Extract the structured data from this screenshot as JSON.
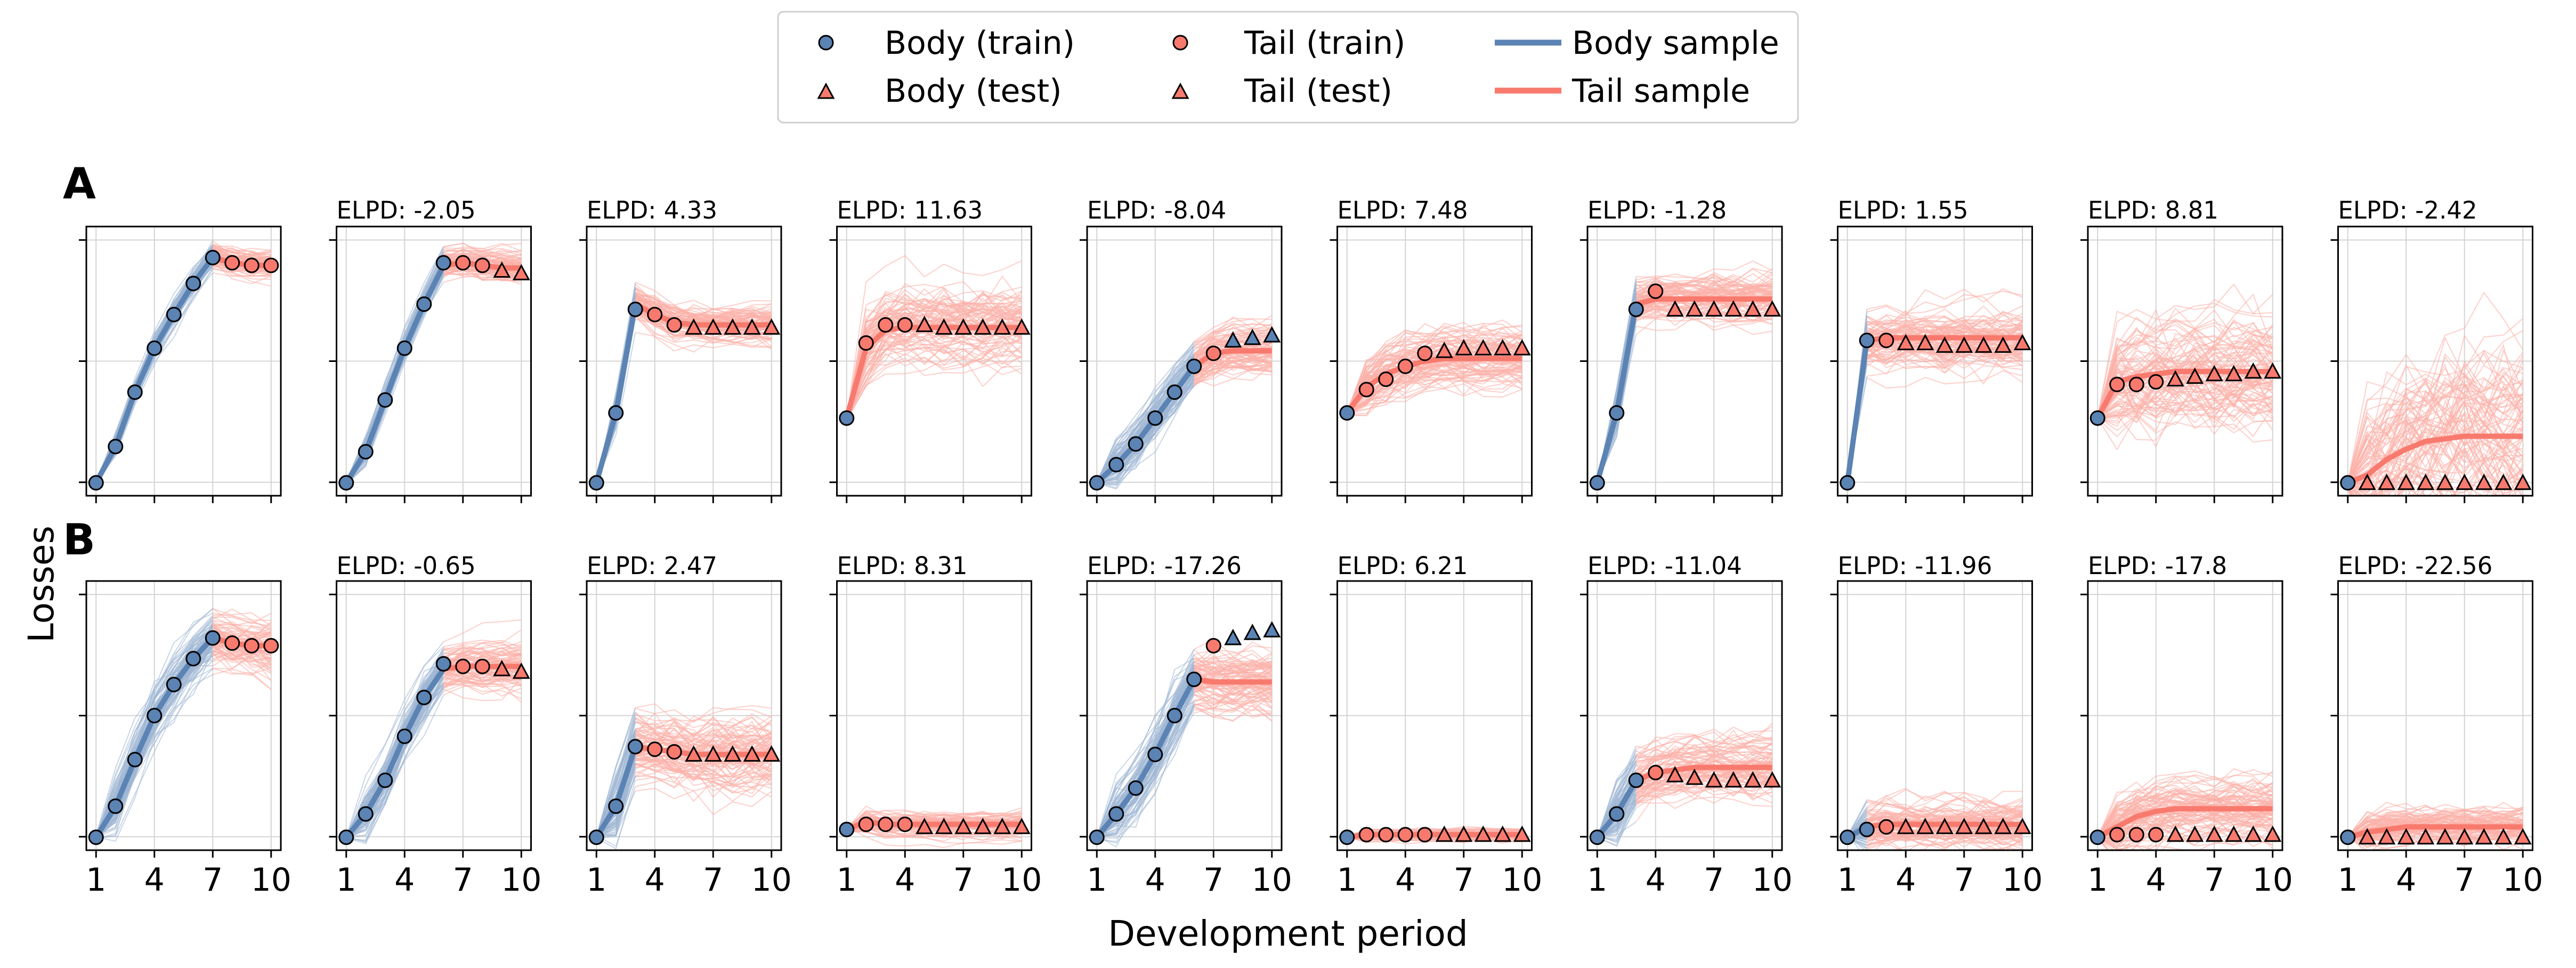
{
  "legend": {
    "entries": [
      {
        "label": "Body (train)",
        "marker": "circle",
        "color": "#5b83b3"
      },
      {
        "label": "Body (test)",
        "marker": "triangle",
        "color": "#f87a6e"
      },
      {
        "label": "Tail (train)",
        "marker": "circle",
        "color": "#f87a6e"
      },
      {
        "label": "Tail (test)",
        "marker": "triangle",
        "color": "#f87a6e"
      },
      {
        "label": "Body sample",
        "marker": "line",
        "color": "#5b83b3"
      },
      {
        "label": "Tail sample",
        "marker": "line",
        "color": "#f87a6e"
      }
    ]
  },
  "colors": {
    "body": "#5b83b3",
    "tail": "#f87a6e",
    "body_light": "#9fb6d3",
    "tail_light": "#fbb0a8"
  },
  "labels": {
    "ylabel": "Losses",
    "xlabel": "Development period"
  },
  "chart_data": {
    "type": "line",
    "xlim": [
      1,
      10
    ],
    "xticks": [
      1,
      4,
      7,
      10
    ],
    "rows": [
      {
        "label": "A",
        "panels": [
          {
            "elpd": "",
            "yticks": [
              0.0,
              0.5,
              1.0
            ],
            "body_n": 7,
            "test_n": 0,
            "tail_x": [
              8,
              9,
              10
            ],
            "obs": [
              0.03,
              0.17,
              0.38,
              0.55,
              0.68,
              0.8,
              0.9,
              0.88,
              0.87,
              0.87
            ],
            "mean": [
              0.03,
              0.17,
              0.38,
              0.55,
              0.68,
              0.8,
              0.9,
              0.88,
              0.87,
              0.87
            ],
            "spread": 0.05
          },
          {
            "elpd": "ELPD: -2.05",
            "yticks": [
              0.0,
              0.4,
              0.8
            ],
            "body_n": 6,
            "test_n": 2,
            "tail_x": [
              7,
              8,
              9,
              10
            ],
            "obs": [
              0.03,
              0.15,
              0.35,
              0.55,
              0.72,
              0.88,
              0.88,
              0.87,
              0.85,
              0.84
            ],
            "mean": [
              0.03,
              0.15,
              0.35,
              0.55,
              0.72,
              0.87,
              0.88,
              0.87,
              0.86,
              0.86
            ],
            "spread": 0.05
          },
          {
            "elpd": "ELPD: 4.33",
            "yticks": [
              0.2,
              0.5,
              0.8
            ],
            "body_n": 3,
            "test_n": 5,
            "tail_x": [
              4,
              5,
              6,
              7,
              8,
              9,
              10
            ],
            "obs": [
              0.03,
              0.3,
              0.7,
              0.68,
              0.64,
              0.63,
              0.63,
              0.63,
              0.63,
              0.63
            ],
            "mean": [
              0.03,
              0.3,
              0.72,
              0.68,
              0.65,
              0.64,
              0.64,
              0.64,
              0.64,
              0.64
            ],
            "spread": 0.06
          },
          {
            "elpd": "ELPD: 11.63",
            "yticks": [
              0.2,
              0.5,
              0.8
            ],
            "body_n": 1,
            "test_n": 6,
            "tail_x": [
              2,
              3,
              4,
              5,
              6,
              7,
              8,
              9,
              10
            ],
            "obs": [
              0.28,
              0.57,
              0.64,
              0.64,
              0.64,
              0.63,
              0.63,
              0.63,
              0.63,
              0.63
            ],
            "mean": [
              0.28,
              0.55,
              0.62,
              0.63,
              0.63,
              0.63,
              0.63,
              0.63,
              0.63,
              0.63
            ],
            "spread": 0.12
          },
          {
            "elpd": "ELPD: -8.04",
            "yticks": [
              0.1,
              0.4,
              0.7
            ],
            "body_n": 6,
            "test_n": 3,
            "tail_x": [
              7,
              8,
              9,
              10
            ],
            "obs": [
              0.03,
              0.1,
              0.18,
              0.28,
              0.38,
              0.48,
              0.53,
              0.58,
              0.59,
              0.6
            ],
            "mean": [
              0.03,
              0.1,
              0.18,
              0.28,
              0.38,
              0.48,
              0.53,
              0.54,
              0.54,
              0.54
            ],
            "spread": 0.08
          },
          {
            "elpd": "ELPD: 7.48",
            "yticks": [
              0.2,
              0.5,
              0.8
            ],
            "body_n": 1,
            "test_n": 5,
            "tail_x": [
              2,
              3,
              4,
              5,
              6,
              7,
              8,
              9,
              10
            ],
            "obs": [
              0.3,
              0.39,
              0.43,
              0.48,
              0.53,
              0.54,
              0.55,
              0.55,
              0.55,
              0.55
            ],
            "mean": [
              0.3,
              0.4,
              0.45,
              0.48,
              0.5,
              0.51,
              0.51,
              0.51,
              0.51,
              0.51
            ],
            "spread": 0.1
          },
          {
            "elpd": "ELPD: -1.28",
            "yticks": [
              0.1,
              0.4,
              0.7
            ],
            "body_n": 3,
            "test_n": 6,
            "tail_x": [
              4,
              5,
              6,
              7,
              8,
              9,
              10
            ],
            "obs": [
              0.03,
              0.3,
              0.7,
              0.77,
              0.7,
              0.7,
              0.7,
              0.7,
              0.7,
              0.7
            ],
            "mean": [
              0.03,
              0.3,
              0.72,
              0.74,
              0.74,
              0.74,
              0.74,
              0.74,
              0.74,
              0.74
            ],
            "spread": 0.08
          },
          {
            "elpd": "ELPD: 1.55",
            "yticks": [
              0.1,
              0.4,
              0.7
            ],
            "body_n": 2,
            "test_n": 7,
            "tail_x": [
              3,
              4,
              5,
              6,
              7,
              8,
              9,
              10
            ],
            "obs": [
              0.03,
              0.58,
              0.58,
              0.57,
              0.57,
              0.56,
              0.56,
              0.56,
              0.56,
              0.57
            ],
            "mean": [
              0.03,
              0.58,
              0.59,
              0.59,
              0.59,
              0.59,
              0.59,
              0.59,
              0.59,
              0.59
            ],
            "spread": 0.1
          },
          {
            "elpd": "ELPD: 8.81",
            "yticks": [
              0.2,
              0.5,
              0.8
            ],
            "body_n": 1,
            "test_n": 6,
            "tail_x": [
              2,
              3,
              4,
              5,
              6,
              7,
              8,
              9,
              10
            ],
            "obs": [
              0.28,
              0.41,
              0.41,
              0.42,
              0.43,
              0.44,
              0.45,
              0.45,
              0.46,
              0.46
            ],
            "mean": [
              0.28,
              0.42,
              0.44,
              0.45,
              0.46,
              0.46,
              0.46,
              0.46,
              0.46,
              0.46
            ],
            "spread": 0.18
          },
          {
            "elpd": "ELPD: -2.42",
            "yticks": [
              0.1,
              0.4,
              0.7
            ],
            "body_n": 1,
            "test_n": 9,
            "tail_x": [
              2,
              3,
              4,
              5,
              6,
              7,
              8,
              9,
              10
            ],
            "obs": [
              0.03,
              0.03,
              0.03,
              0.03,
              0.03,
              0.03,
              0.03,
              0.03,
              0.03,
              0.03
            ],
            "mean": [
              0.03,
              0.06,
              0.12,
              0.16,
              0.19,
              0.2,
              0.21,
              0.21,
              0.21,
              0.21
            ],
            "spread": 0.3
          }
        ]
      },
      {
        "label": "B",
        "panels": [
          {
            "elpd": "",
            "yticks": [
              0.0,
              0.5,
              1.0
            ],
            "body_n": 7,
            "test_n": 0,
            "tail_x": [
              8,
              9,
              10
            ],
            "obs": [
              0.03,
              0.15,
              0.33,
              0.5,
              0.62,
              0.72,
              0.8,
              0.78,
              0.77,
              0.77
            ],
            "mean": [
              0.03,
              0.15,
              0.33,
              0.5,
              0.62,
              0.72,
              0.8,
              0.78,
              0.77,
              0.77
            ],
            "spread": 0.1
          },
          {
            "elpd": "ELPD: -0.65",
            "yticks": [
              0.0,
              0.4,
              0.8
            ],
            "body_n": 6,
            "test_n": 2,
            "tail_x": [
              7,
              8,
              9,
              10
            ],
            "obs": [
              0.03,
              0.12,
              0.25,
              0.42,
              0.57,
              0.7,
              0.69,
              0.69,
              0.68,
              0.67
            ],
            "mean": [
              0.03,
              0.12,
              0.25,
              0.42,
              0.57,
              0.68,
              0.69,
              0.69,
              0.69,
              0.69
            ],
            "spread": 0.08
          },
          {
            "elpd": "ELPD: 2.47",
            "yticks": [
              0.1,
              0.4,
              0.7
            ],
            "body_n": 3,
            "test_n": 5,
            "tail_x": [
              4,
              5,
              6,
              7,
              8,
              9,
              10
            ],
            "obs": [
              0.03,
              0.15,
              0.38,
              0.37,
              0.36,
              0.35,
              0.35,
              0.35,
              0.35,
              0.35
            ],
            "mean": [
              0.03,
              0.15,
              0.38,
              0.37,
              0.36,
              0.35,
              0.35,
              0.35,
              0.35,
              0.35
            ],
            "spread": 0.12
          },
          {
            "elpd": "ELPD: 8.31",
            "yticks": [
              0.1,
              0.4,
              0.7
            ],
            "body_n": 1,
            "test_n": 6,
            "tail_x": [
              2,
              3,
              4,
              5,
              6,
              7,
              8,
              9,
              10
            ],
            "obs": [
              0.06,
              0.08,
              0.08,
              0.08,
              0.07,
              0.07,
              0.07,
              0.07,
              0.07,
              0.07
            ],
            "mean": [
              0.06,
              0.09,
              0.08,
              0.08,
              0.08,
              0.08,
              0.08,
              0.08,
              0.08,
              0.08
            ],
            "spread": 0.04
          },
          {
            "elpd": "ELPD: -17.26",
            "yticks": [
              0.1,
              0.4,
              0.7
            ],
            "body_n": 6,
            "test_n": 3,
            "tail_x": [
              7,
              8,
              9,
              10
            ],
            "obs": [
              0.03,
              0.12,
              0.22,
              0.35,
              0.5,
              0.64,
              0.77,
              0.8,
              0.82,
              0.83
            ],
            "mean": [
              0.03,
              0.12,
              0.22,
              0.35,
              0.5,
              0.64,
              0.63,
              0.63,
              0.63,
              0.63
            ],
            "spread": 0.1
          },
          {
            "elpd": "ELPD: 6.21",
            "yticks": [
              0.1,
              0.4,
              0.7
            ],
            "body_n": 1,
            "test_n": 5,
            "tail_x": [
              2,
              3,
              4,
              5,
              6,
              7,
              8,
              9,
              10
            ],
            "obs": [
              0.03,
              0.04,
              0.04,
              0.04,
              0.04,
              0.04,
              0.04,
              0.04,
              0.04,
              0.04
            ],
            "mean": [
              0.03,
              0.04,
              0.04,
              0.04,
              0.04,
              0.04,
              0.04,
              0.04,
              0.04,
              0.04
            ],
            "spread": 0.02
          },
          {
            "elpd": "ELPD: -11.04",
            "yticks": [
              0.1,
              0.4,
              0.7
            ],
            "body_n": 3,
            "test_n": 6,
            "tail_x": [
              4,
              5,
              6,
              7,
              8,
              9,
              10
            ],
            "obs": [
              0.03,
              0.12,
              0.25,
              0.28,
              0.27,
              0.26,
              0.25,
              0.25,
              0.25,
              0.25
            ],
            "mean": [
              0.03,
              0.12,
              0.25,
              0.28,
              0.29,
              0.3,
              0.3,
              0.3,
              0.3,
              0.3
            ],
            "spread": 0.1
          },
          {
            "elpd": "ELPD: -11.96",
            "yticks": [
              0.1,
              0.4,
              0.7
            ],
            "body_n": 2,
            "test_n": 7,
            "tail_x": [
              3,
              4,
              5,
              6,
              7,
              8,
              9,
              10
            ],
            "obs": [
              0.03,
              0.06,
              0.07,
              0.07,
              0.07,
              0.07,
              0.07,
              0.07,
              0.07,
              0.07
            ],
            "mean": [
              0.03,
              0.07,
              0.08,
              0.08,
              0.08,
              0.08,
              0.08,
              0.08,
              0.08,
              0.08
            ],
            "spread": 0.08
          },
          {
            "elpd": "ELPD: -17.8",
            "yticks": [
              0.1,
              0.4,
              0.7
            ],
            "body_n": 1,
            "test_n": 6,
            "tail_x": [
              2,
              3,
              4,
              5,
              6,
              7,
              8,
              9,
              10
            ],
            "obs": [
              0.03,
              0.04,
              0.04,
              0.04,
              0.04,
              0.04,
              0.04,
              0.04,
              0.04,
              0.04
            ],
            "mean": [
              0.03,
              0.07,
              0.11,
              0.13,
              0.14,
              0.14,
              0.14,
              0.14,
              0.14,
              0.14
            ],
            "spread": 0.1
          },
          {
            "elpd": "ELPD: -22.56",
            "yticks": [
              0.1,
              0.4,
              0.7
            ],
            "body_n": 1,
            "test_n": 9,
            "tail_x": [
              2,
              3,
              4,
              5,
              6,
              7,
              8,
              9,
              10
            ],
            "obs": [
              0.03,
              0.03,
              0.03,
              0.03,
              0.03,
              0.03,
              0.03,
              0.03,
              0.03,
              0.03
            ],
            "mean": [
              0.03,
              0.05,
              0.06,
              0.07,
              0.07,
              0.07,
              0.07,
              0.07,
              0.07,
              0.07
            ],
            "spread": 0.06
          }
        ]
      }
    ],
    "grid": true,
    "legend_position": "top-center"
  }
}
